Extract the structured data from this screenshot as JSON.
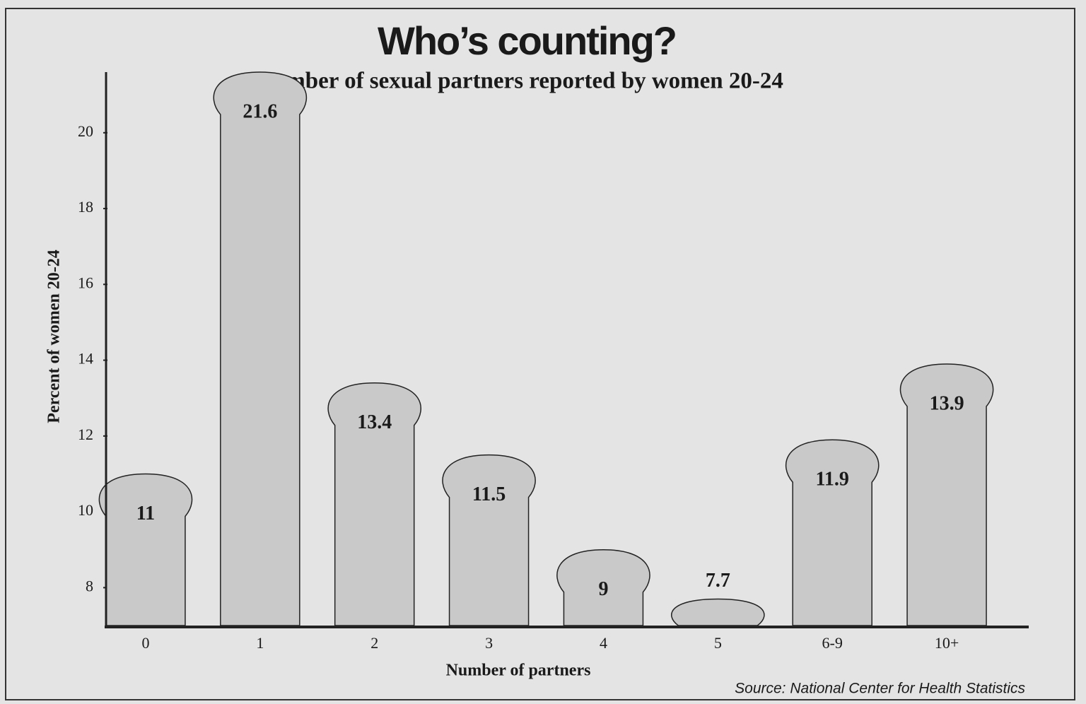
{
  "chart_data": {
    "type": "bar",
    "title": "Who’s counting?",
    "subtitle": "Number of sexual partners reported by women 20-24",
    "y_label": "Percent of women 20-24",
    "x_label": "Number of partners",
    "source": "Source: National Center for Health Statistics",
    "categories": [
      "0",
      "1",
      "2",
      "3",
      "4",
      "5",
      "6-9",
      "10+"
    ],
    "values": [
      11,
      21.6,
      13.4,
      11.5,
      9,
      7.7,
      11.9,
      13.9
    ],
    "color": "#c9c9c9",
    "ylim": [
      7,
      21.6
    ],
    "yticks": [
      8,
      10,
      12,
      14,
      16,
      18,
      20
    ]
  }
}
